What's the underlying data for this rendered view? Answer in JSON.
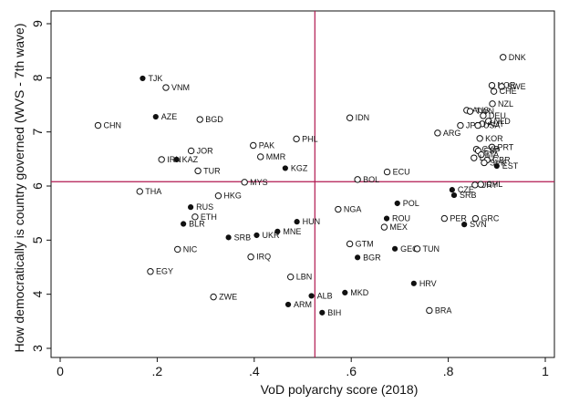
{
  "chart_data": {
    "type": "scatter",
    "xlabel": "VoD polyarchy score (2018)",
    "ylabel": "How democratically is country governed (WVS - 7th wave)",
    "xlim": [
      0,
      1
    ],
    "ylim": [
      2.85,
      9.3
    ],
    "x_ticks": [
      "0",
      ".2",
      ".4",
      ".6",
      ".8",
      "1"
    ],
    "x_tick_values": [
      0,
      0.2,
      0.4,
      0.6,
      0.8,
      1
    ],
    "y_ticks": [
      "3",
      "4",
      "5",
      "6",
      "7",
      "8",
      "9"
    ],
    "y_tick_values": [
      3,
      4,
      5,
      6,
      7,
      8,
      9
    ],
    "reference_lines": {
      "x": 0.525,
      "y": 6.08
    },
    "grid": false,
    "colors": {
      "point": "#111111",
      "reference_line": "#b0174f",
      "axis": "#111111"
    },
    "points": [
      {
        "label": "DNK",
        "x": 0.913,
        "y": 8.38,
        "marker": "hollow"
      },
      {
        "label": "NOR",
        "x": 0.89,
        "y": 7.86,
        "marker": "hollow"
      },
      {
        "label": "SWE",
        "x": 0.91,
        "y": 7.84,
        "marker": "hollow"
      },
      {
        "label": "CHE",
        "x": 0.894,
        "y": 7.75,
        "marker": "hollow"
      },
      {
        "label": "NZL",
        "x": 0.891,
        "y": 7.52,
        "marker": "hollow"
      },
      {
        "label": "AUS",
        "x": 0.838,
        "y": 7.4,
        "marker": "hollow"
      },
      {
        "label": "TWN",
        "x": 0.845,
        "y": 7.38,
        "marker": "hollow"
      },
      {
        "label": "DEU",
        "x": 0.872,
        "y": 7.3,
        "marker": "hollow"
      },
      {
        "label": "NLD",
        "x": 0.883,
        "y": 7.2,
        "marker": "hollow"
      },
      {
        "label": "AUT",
        "x": 0.87,
        "y": 7.15,
        "marker": "hollow"
      },
      {
        "label": "JPN",
        "x": 0.825,
        "y": 7.12,
        "marker": "hollow"
      },
      {
        "label": "USA",
        "x": 0.861,
        "y": 7.12,
        "marker": "hollow"
      },
      {
        "label": "ARG",
        "x": 0.778,
        "y": 6.98,
        "marker": "hollow"
      },
      {
        "label": "KOR",
        "x": 0.865,
        "y": 6.88,
        "marker": "hollow"
      },
      {
        "label": "PRT",
        "x": 0.89,
        "y": 6.72,
        "marker": "hollow"
      },
      {
        "label": "CYP",
        "x": 0.858,
        "y": 6.68,
        "marker": "hollow"
      },
      {
        "label": "ESP",
        "x": 0.862,
        "y": 6.65,
        "marker": "hollow"
      },
      {
        "label": "ITA",
        "x": 0.868,
        "y": 6.58,
        "marker": "hollow"
      },
      {
        "label": "LTU",
        "x": 0.853,
        "y": 6.52,
        "marker": "hollow"
      },
      {
        "label": "GBR",
        "x": 0.88,
        "y": 6.48,
        "marker": "hollow"
      },
      {
        "label": "SVK",
        "x": 0.874,
        "y": 6.43,
        "marker": "hollow"
      },
      {
        "label": "EST",
        "x": 0.9,
        "y": 6.37,
        "marker": "filled"
      },
      {
        "label": "URY",
        "x": 0.855,
        "y": 6.02,
        "marker": "hollow"
      },
      {
        "label": "CHL",
        "x": 0.867,
        "y": 6.03,
        "marker": "hollow"
      },
      {
        "label": "CZE",
        "x": 0.808,
        "y": 5.93,
        "marker": "filled"
      },
      {
        "label": "SRB",
        "x": 0.812,
        "y": 5.83,
        "marker": "filled"
      },
      {
        "label": "POL",
        "x": 0.695,
        "y": 5.68,
        "marker": "filled"
      },
      {
        "label": "PER",
        "x": 0.792,
        "y": 5.4,
        "marker": "hollow"
      },
      {
        "label": "GRC",
        "x": 0.856,
        "y": 5.4,
        "marker": "hollow"
      },
      {
        "label": "SVN",
        "x": 0.833,
        "y": 5.29,
        "marker": "filled"
      },
      {
        "label": "ROU",
        "x": 0.673,
        "y": 5.4,
        "marker": "filled"
      },
      {
        "label": "MEX",
        "x": 0.668,
        "y": 5.24,
        "marker": "hollow"
      },
      {
        "label": "IDN",
        "x": 0.597,
        "y": 7.26,
        "marker": "hollow"
      },
      {
        "label": "BOL",
        "x": 0.613,
        "y": 6.12,
        "marker": "hollow"
      },
      {
        "label": "ECU",
        "x": 0.674,
        "y": 6.26,
        "marker": "hollow"
      },
      {
        "label": "NGA",
        "x": 0.573,
        "y": 5.57,
        "marker": "hollow"
      },
      {
        "label": "GTM",
        "x": 0.597,
        "y": 4.93,
        "marker": "hollow"
      },
      {
        "label": "GEO",
        "x": 0.69,
        "y": 4.84,
        "marker": "filled"
      },
      {
        "label": "TUN",
        "x": 0.736,
        "y": 4.84,
        "marker": "hollow"
      },
      {
        "label": "BGR",
        "x": 0.613,
        "y": 4.68,
        "marker": "filled"
      },
      {
        "label": "HRV",
        "x": 0.729,
        "y": 4.2,
        "marker": "filled"
      },
      {
        "label": "MKD",
        "x": 0.587,
        "y": 4.03,
        "marker": "filled"
      },
      {
        "label": "BRA",
        "x": 0.761,
        "y": 3.7,
        "marker": "hollow"
      },
      {
        "label": "BIH",
        "x": 0.54,
        "y": 3.66,
        "marker": "filled"
      },
      {
        "label": "ALB",
        "x": 0.518,
        "y": 3.97,
        "marker": "filled"
      },
      {
        "label": "ARM",
        "x": 0.47,
        "y": 3.81,
        "marker": "filled"
      },
      {
        "label": "LBN",
        "x": 0.475,
        "y": 4.32,
        "marker": "hollow"
      },
      {
        "label": "HUN",
        "x": 0.488,
        "y": 5.34,
        "marker": "filled"
      },
      {
        "label": "MNE",
        "x": 0.448,
        "y": 5.16,
        "marker": "filled"
      },
      {
        "label": "UKR",
        "x": 0.405,
        "y": 5.09,
        "marker": "filled"
      },
      {
        "label": "SRB",
        "x": 0.347,
        "y": 5.05,
        "marker": "filled"
      },
      {
        "label": "IRQ",
        "x": 0.393,
        "y": 4.69,
        "marker": "hollow"
      },
      {
        "label": "PHL",
        "x": 0.487,
        "y": 6.87,
        "marker": "hollow"
      },
      {
        "label": "PAK",
        "x": 0.398,
        "y": 6.75,
        "marker": "hollow"
      },
      {
        "label": "MMR",
        "x": 0.413,
        "y": 6.54,
        "marker": "hollow"
      },
      {
        "label": "KGZ",
        "x": 0.464,
        "y": 6.33,
        "marker": "filled"
      },
      {
        "label": "MYS",
        "x": 0.38,
        "y": 6.07,
        "marker": "hollow"
      },
      {
        "label": "HKG",
        "x": 0.326,
        "y": 5.82,
        "marker": "hollow"
      },
      {
        "label": "TJK",
        "x": 0.17,
        "y": 7.99,
        "marker": "filled"
      },
      {
        "label": "VNM",
        "x": 0.218,
        "y": 7.82,
        "marker": "hollow"
      },
      {
        "label": "AZE",
        "x": 0.197,
        "y": 7.28,
        "marker": "filled"
      },
      {
        "label": "BGD",
        "x": 0.288,
        "y": 7.23,
        "marker": "hollow"
      },
      {
        "label": "CHN",
        "x": 0.078,
        "y": 7.12,
        "marker": "hollow"
      },
      {
        "label": "JOR",
        "x": 0.27,
        "y": 6.65,
        "marker": "hollow"
      },
      {
        "label": "IRN",
        "x": 0.209,
        "y": 6.49,
        "marker": "hollow"
      },
      {
        "label": "KAZ",
        "x": 0.24,
        "y": 6.49,
        "marker": "filled"
      },
      {
        "label": "TUR",
        "x": 0.284,
        "y": 6.28,
        "marker": "hollow"
      },
      {
        "label": "THA",
        "x": 0.164,
        "y": 5.9,
        "marker": "hollow"
      },
      {
        "label": "RUS",
        "x": 0.269,
        "y": 5.61,
        "marker": "filled"
      },
      {
        "label": "ETH",
        "x": 0.278,
        "y": 5.43,
        "marker": "hollow"
      },
      {
        "label": "BLR",
        "x": 0.254,
        "y": 5.3,
        "marker": "filled"
      },
      {
        "label": "NIC",
        "x": 0.242,
        "y": 4.83,
        "marker": "hollow"
      },
      {
        "label": "EGY",
        "x": 0.186,
        "y": 4.42,
        "marker": "hollow"
      },
      {
        "label": "ZWE",
        "x": 0.316,
        "y": 3.95,
        "marker": "hollow"
      }
    ]
  }
}
